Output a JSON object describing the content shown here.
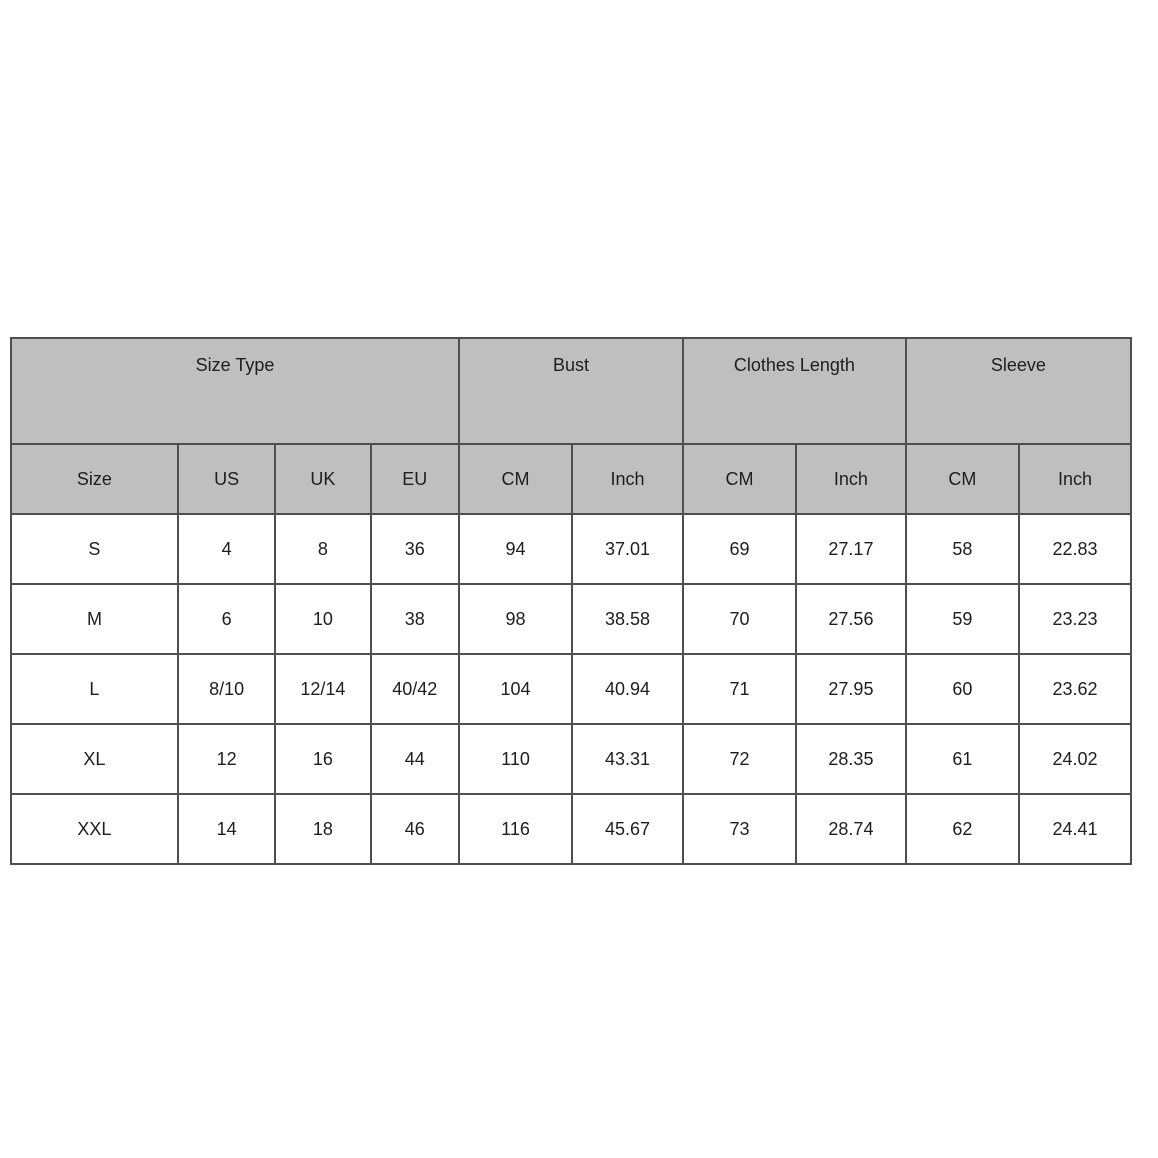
{
  "chart_data": {
    "type": "table",
    "header_groups": [
      {
        "label": "Size Type",
        "colspan": 4
      },
      {
        "label": "Bust",
        "colspan": 2
      },
      {
        "label": "Clothes Length",
        "colspan": 2
      },
      {
        "label": "Sleeve",
        "colspan": 2
      }
    ],
    "columns": [
      "Size",
      "US",
      "UK",
      "EU",
      "CM",
      "Inch",
      "CM",
      "Inch",
      "CM",
      "Inch"
    ],
    "rows": [
      [
        "S",
        "4",
        "8",
        "36",
        "94",
        "37.01",
        "69",
        "27.17",
        "58",
        "22.83"
      ],
      [
        "M",
        "6",
        "10",
        "38",
        "98",
        "38.58",
        "70",
        "27.56",
        "59",
        "23.23"
      ],
      [
        "L",
        "8/10",
        "12/14",
        "40/42",
        "104",
        "40.94",
        "71",
        "27.95",
        "60",
        "23.62"
      ],
      [
        "XL",
        "12",
        "16",
        "44",
        "110",
        "43.31",
        "72",
        "28.35",
        "61",
        "24.02"
      ],
      [
        "XXL",
        "14",
        "18",
        "46",
        "116",
        "45.67",
        "73",
        "28.74",
        "62",
        "24.41"
      ]
    ],
    "layout": {
      "grid": "on",
      "column_width_percents": [
        14.9,
        8.7,
        8.5,
        7.9,
        10.1,
        9.9,
        10.1,
        9.8,
        10.1,
        10.0
      ]
    },
    "colors": {
      "header_background": "#bfbfbf",
      "row_background": "#ffffff",
      "border": "#4f4f4f",
      "text": "#1e1e1e",
      "page_background": "#ffffff"
    }
  }
}
